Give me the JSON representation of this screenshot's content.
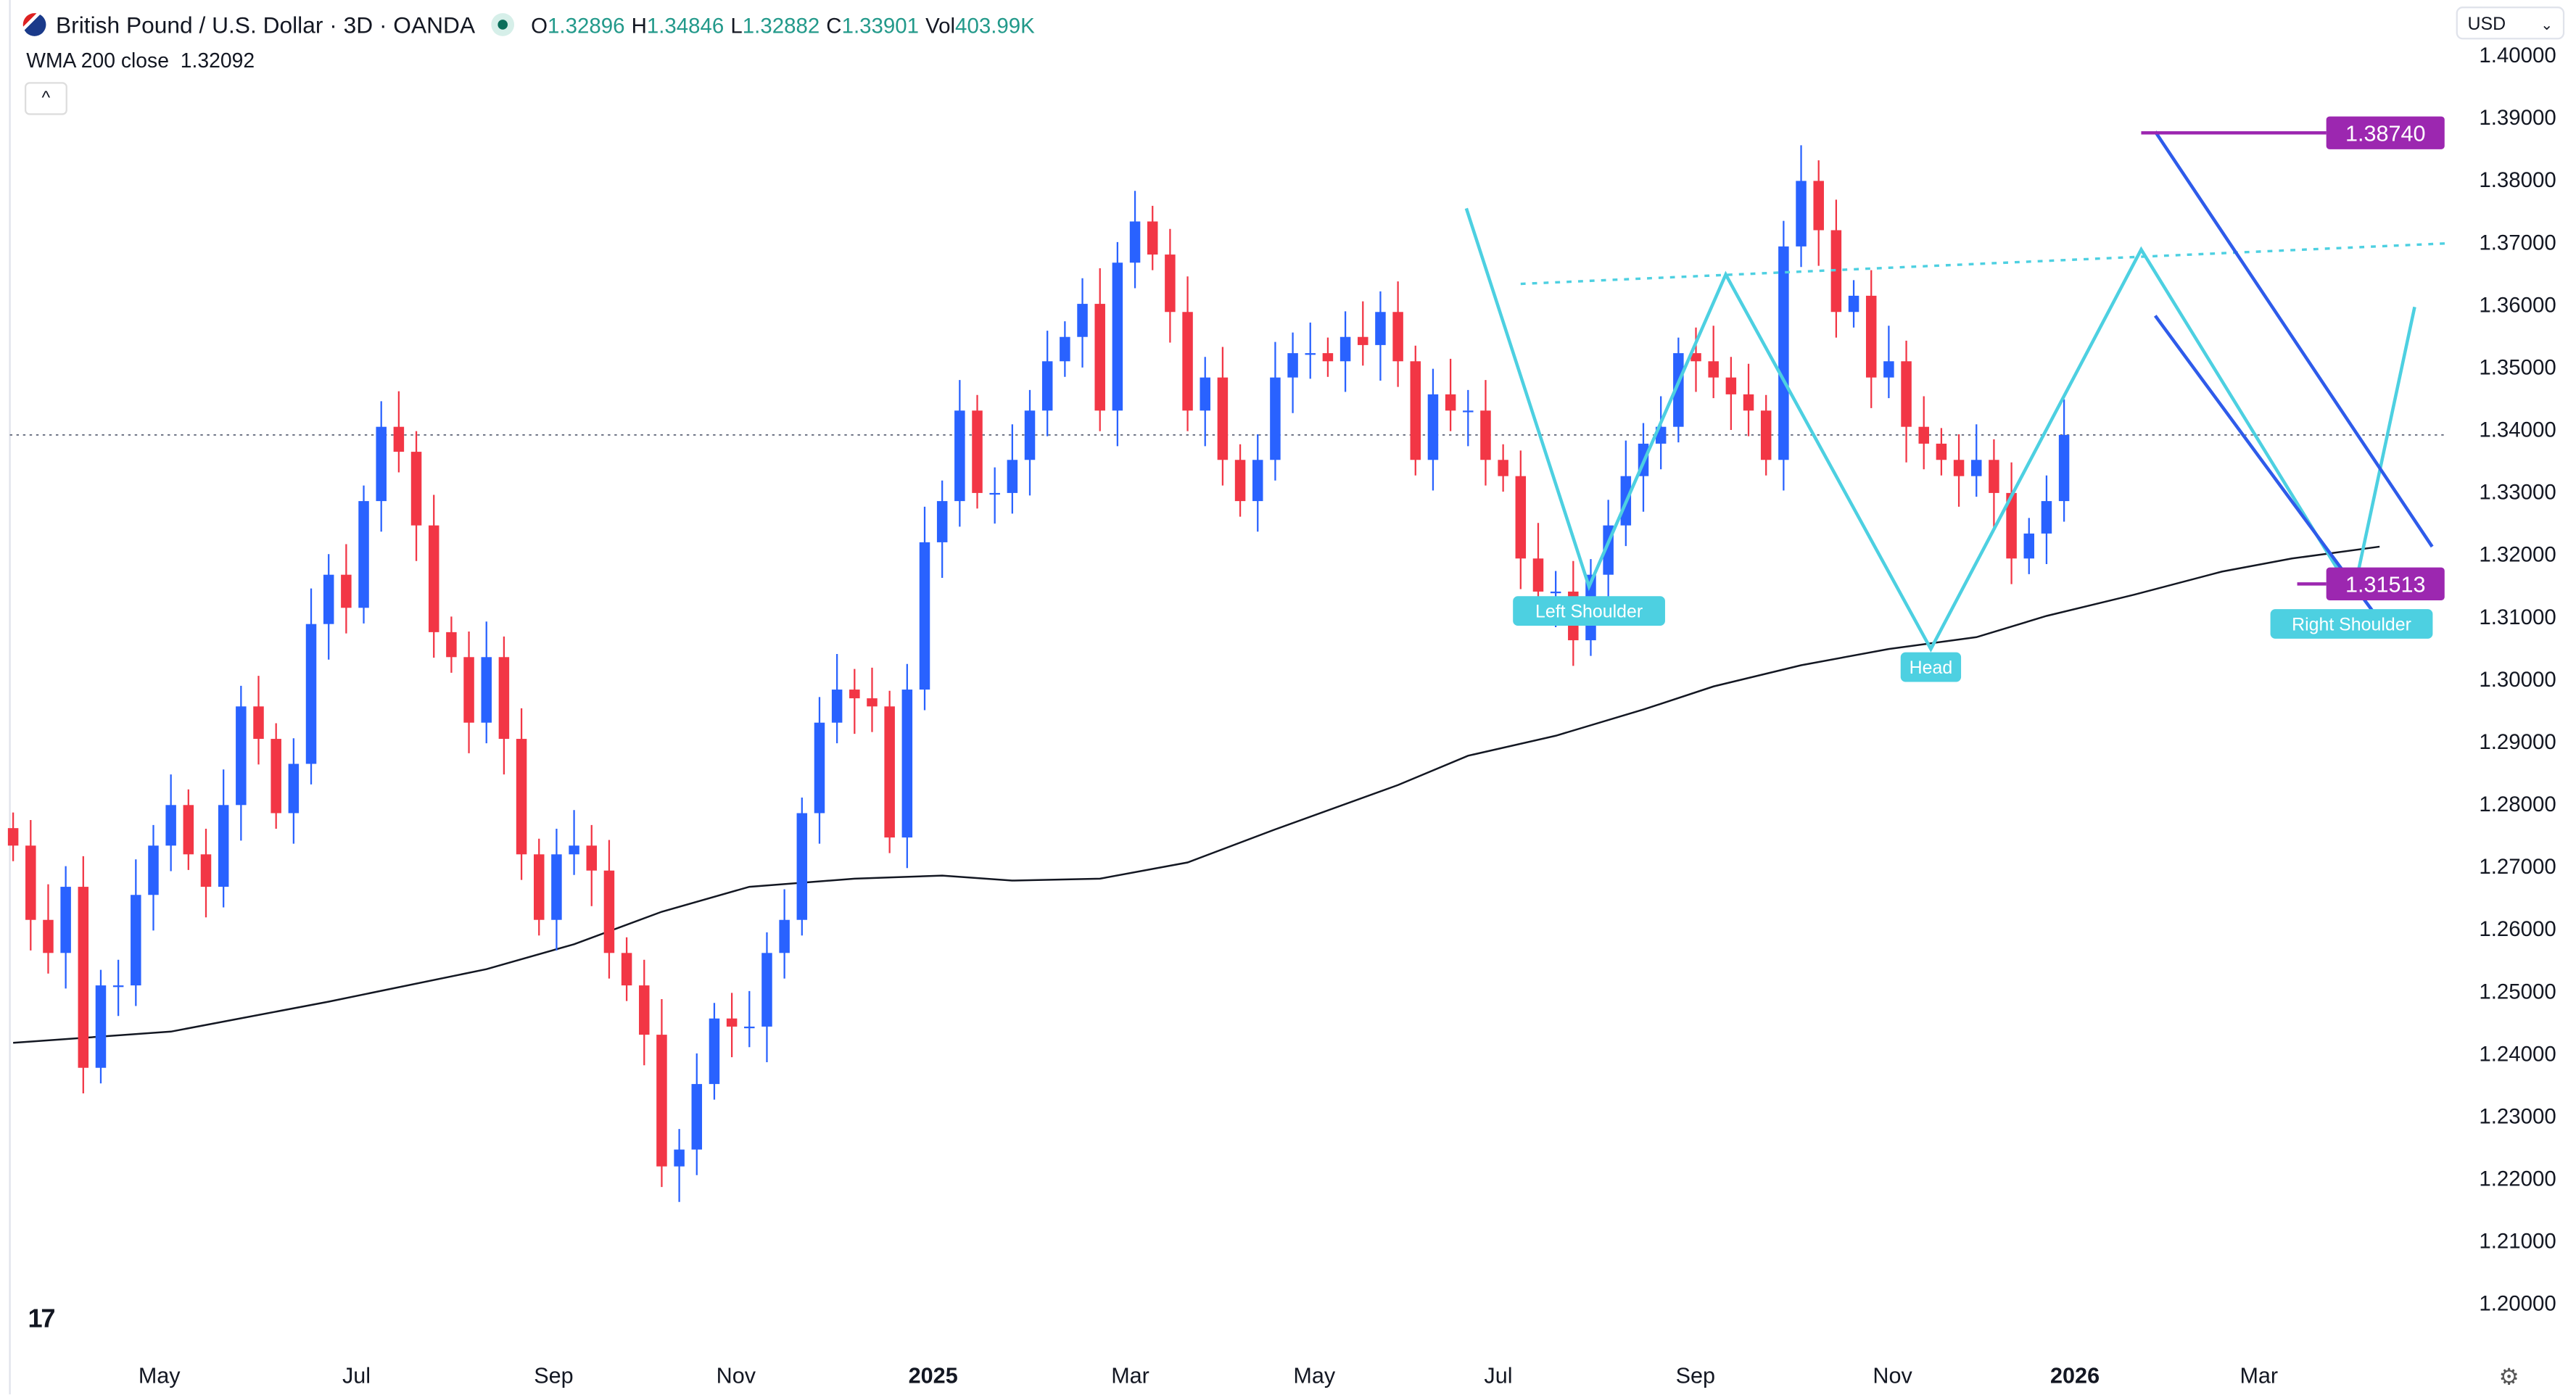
{
  "header": {
    "symbol_title": "British Pound / U.S. Dollar · 3D · OANDA",
    "market_status": "open",
    "ohlc": [
      {
        "k": "O",
        "v": "1.32896"
      },
      {
        "k": "H",
        "v": "1.34846"
      },
      {
        "k": "L",
        "v": "1.32882"
      },
      {
        "k": "C",
        "v": "1.33901"
      },
      {
        "k": "Vol",
        "v": "403.99K"
      }
    ]
  },
  "indicator": {
    "label": "WMA 200 close",
    "value": "1.32092"
  },
  "collapse_label": "^",
  "currency": {
    "selected": "USD"
  },
  "chart_data": {
    "type": "candlestick",
    "colors": {
      "up": "#2962FF",
      "down": "#F23645",
      "wma": "#131722",
      "pattern": "#4DD0E1",
      "channel": "#2E5BEA",
      "level": "#9C27B0"
    },
    "y_ticks": [
      "1.40000",
      "1.39000",
      "1.38000",
      "1.37000",
      "1.36000",
      "1.35000",
      "1.34000",
      "1.33000",
      "1.32000",
      "1.31000",
      "1.30000",
      "1.29000",
      "1.28000",
      "1.27000",
      "1.26000",
      "1.25000",
      "1.24000",
      "1.23000",
      "1.22000",
      "1.21000",
      "1.20000"
    ],
    "ylim": [
      1.2,
      1.4
    ],
    "x_ticks": [
      {
        "label": "May",
        "bold": false
      },
      {
        "label": "Jul",
        "bold": false
      },
      {
        "label": "Sep",
        "bold": false
      },
      {
        "label": "Nov",
        "bold": false
      },
      {
        "label": "2025",
        "bold": true
      },
      {
        "label": "Mar",
        "bold": false
      },
      {
        "label": "May",
        "bold": false
      },
      {
        "label": "Jul",
        "bold": false
      },
      {
        "label": "Sep",
        "bold": false
      },
      {
        "label": "Nov",
        "bold": false
      },
      {
        "label": "2026",
        "bold": true
      },
      {
        "label": "Mar",
        "bold": false
      }
    ],
    "first_open": 1.276,
    "closes": [
      1.2732,
      1.2613,
      1.256,
      1.2666,
      1.2376,
      1.2508,
      1.2508,
      1.2653,
      1.2732,
      1.2797,
      1.2718,
      1.2666,
      1.2797,
      1.2955,
      1.2903,
      1.2784,
      1.2863,
      1.3087,
      1.3166,
      1.3113,
      1.3284,
      1.3403,
      1.3363,
      1.3245,
      1.3074,
      1.3034,
      1.2929,
      1.3034,
      1.2903,
      1.2718,
      1.2613,
      1.2718,
      1.2732,
      1.2692,
      1.256,
      1.2508,
      1.2429,
      1.2218,
      1.2245,
      1.235,
      1.2455,
      1.2442,
      1.2442,
      1.256,
      1.2613,
      1.2784,
      1.2929,
      1.2982,
      1.2968,
      1.2955,
      1.2745,
      1.2982,
      1.3218,
      1.3284,
      1.3429,
      1.3297,
      1.3297,
      1.335,
      1.3429,
      1.3508,
      1.3547,
      1.36,
      1.3429,
      1.3666,
      1.3732,
      1.3679,
      1.3587,
      1.3429,
      1.3482,
      1.335,
      1.3284,
      1.335,
      1.3482,
      1.3521,
      1.3521,
      1.3508,
      1.3547,
      1.3534,
      1.3587,
      1.3508,
      1.335,
      1.3455,
      1.3429,
      1.3429,
      1.335,
      1.3324,
      1.3192,
      1.3139,
      1.3139,
      1.3061,
      1.3166,
      1.3245,
      1.3324,
      1.3376,
      1.3403,
      1.3521,
      1.3508,
      1.3482,
      1.3455,
      1.3429,
      1.335,
      1.3692,
      1.3797,
      1.3718,
      1.3587,
      1.3613,
      1.3482,
      1.3508,
      1.3403,
      1.3376,
      1.335,
      1.3324,
      1.335,
      1.3297,
      1.3192,
      1.3232,
      1.3284,
      1.339
    ],
    "wma": [
      [
        0,
        1.2416
      ],
      [
        9,
        1.2434
      ],
      [
        18,
        1.2482
      ],
      [
        27,
        1.2534
      ],
      [
        32,
        1.2574
      ],
      [
        37,
        1.2626
      ],
      [
        42,
        1.2666
      ],
      [
        48,
        1.2679
      ],
      [
        53,
        1.2684
      ],
      [
        57,
        1.2676
      ],
      [
        62,
        1.2679
      ],
      [
        67,
        1.2705
      ],
      [
        72,
        1.2758
      ],
      [
        79,
        1.2829
      ],
      [
        83,
        1.2876
      ],
      [
        88,
        1.2908
      ],
      [
        93,
        1.295
      ],
      [
        97,
        1.2987
      ],
      [
        102,
        1.3021
      ],
      [
        107,
        1.3047
      ],
      [
        112,
        1.3066
      ],
      [
        116,
        1.31
      ],
      [
        121,
        1.3134
      ],
      [
        126,
        1.3171
      ],
      [
        130,
        1.3192
      ],
      [
        135,
        1.3211
      ]
    ],
    "last_price": 1.339,
    "levels": [
      {
        "value": 1.3874,
        "label": "1.38740",
        "from": 121.4
      },
      {
        "value": 1.31513,
        "label": "1.31513",
        "from": 130.3
      }
    ],
    "pattern_zigzag": [
      [
        82.9,
        1.3753
      ],
      [
        89.9,
        1.3147
      ],
      [
        97.7,
        1.3647
      ],
      [
        109.4,
        1.3047
      ],
      [
        121.4,
        1.3687
      ],
      [
        133.5,
        1.3134
      ],
      [
        137.0,
        1.3595
      ]
    ],
    "neckline": [
      [
        86,
        1.3632
      ],
      [
        138.9,
        1.3697
      ]
    ],
    "channel_upper": [
      [
        122.2,
        1.3876
      ],
      [
        138,
        1.3211
      ]
    ],
    "channel_lower": [
      [
        122.2,
        1.3581
      ],
      [
        135.7,
        1.3066
      ]
    ],
    "annotations": [
      {
        "text": "Left Shoulder",
        "at": [
          89.9,
          1.3108
        ]
      },
      {
        "text": "Head",
        "at": [
          109.4,
          1.3018
        ]
      },
      {
        "text": "Right Shoulder",
        "at": [
          133.4,
          1.3103
        ]
      }
    ]
  }
}
